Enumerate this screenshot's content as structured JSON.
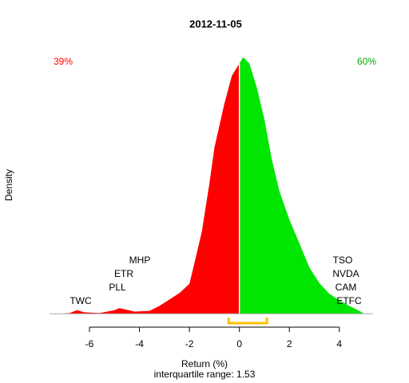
{
  "chart_data": {
    "type": "area",
    "title": "2012-11-05",
    "x_label": "Return (%)",
    "y_label": "Density",
    "subtitle": "interquartile range: 1.53",
    "left_share": "39%",
    "right_share": "60%",
    "left_tickers": [
      "TWC",
      "PLL",
      "ETR",
      "MHP"
    ],
    "right_tickers": [
      "ETFC",
      "CAM",
      "NVDA",
      "TSO"
    ],
    "series": [
      {
        "color": "#ff0000",
        "x": [
          -7.2,
          -6.8,
          -6.5,
          -6.2,
          -5.6,
          -5.0,
          -4.8,
          -4.2,
          -3.6,
          -3.2,
          -2.8,
          -2.4,
          -2.0,
          -1.8,
          -1.5,
          -1.2,
          -1.0,
          -0.6,
          -0.3,
          0
        ],
        "values": [
          0,
          0.001,
          0.005,
          0.002,
          0.001,
          0.005,
          0.008,
          0.003,
          0.004,
          0.011,
          0.02,
          0.029,
          0.042,
          0.071,
          0.116,
          0.183,
          0.233,
          0.295,
          0.334,
          0.351
        ]
      },
      {
        "color": "#00e600",
        "x": [
          0,
          0.15,
          0.4,
          0.7,
          1.0,
          1.3,
          1.6,
          2.0,
          2.4,
          2.8,
          3.2,
          3.6,
          4.0,
          4.4,
          4.8,
          5.0
        ],
        "values": [
          0.351,
          0.36,
          0.351,
          0.317,
          0.273,
          0.216,
          0.172,
          0.132,
          0.099,
          0.065,
          0.043,
          0.028,
          0.019,
          0.011,
          0.004,
          0
        ]
      }
    ],
    "iqr": [
      -0.43,
      1.1
    ],
    "iqr_color": "#ffc000",
    "xlim": [
      -7.6,
      5.35
    ],
    "ylim": [
      -0.002,
      0.373
    ],
    "xticks": [
      -6,
      -4,
      -2,
      0,
      2,
      4
    ]
  }
}
